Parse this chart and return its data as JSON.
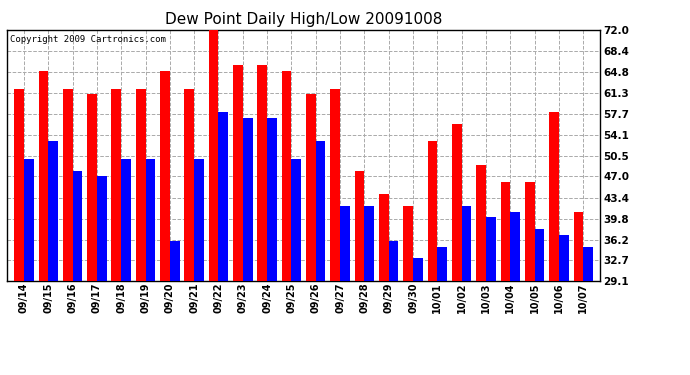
{
  "title": "Dew Point Daily High/Low 20091008",
  "copyright": "Copyright 2009 Cartronics.com",
  "dates": [
    "09/14",
    "09/15",
    "09/16",
    "09/17",
    "09/18",
    "09/19",
    "09/20",
    "09/21",
    "09/22",
    "09/23",
    "09/24",
    "09/25",
    "09/26",
    "09/27",
    "09/28",
    "09/29",
    "09/30",
    "10/01",
    "10/02",
    "10/03",
    "10/04",
    "10/05",
    "10/06",
    "10/07"
  ],
  "high": [
    62,
    65,
    62,
    61,
    62,
    62,
    65,
    62,
    72,
    66,
    66,
    65,
    61,
    62,
    48,
    44,
    42,
    53,
    56,
    49,
    46,
    46,
    58,
    41
  ],
  "low": [
    50,
    53,
    48,
    47,
    50,
    50,
    36,
    50,
    58,
    57,
    57,
    50,
    53,
    42,
    42,
    36,
    33,
    35,
    42,
    40,
    41,
    38,
    37,
    35
  ],
  "high_color": "#ff0000",
  "low_color": "#0000ff",
  "bg_color": "#ffffff",
  "plot_bg_color": "#ffffff",
  "grid_color": "#aaaaaa",
  "yticks": [
    29.1,
    32.7,
    36.2,
    39.8,
    43.4,
    47.0,
    50.5,
    54.1,
    57.7,
    61.3,
    64.8,
    68.4,
    72.0
  ],
  "ymin": 29.1,
  "ymax": 72.0,
  "bar_width": 0.4,
  "title_fontsize": 11,
  "tick_fontsize": 7.5,
  "xlabel_fontsize": 7,
  "copyright_fontsize": 6.5
}
